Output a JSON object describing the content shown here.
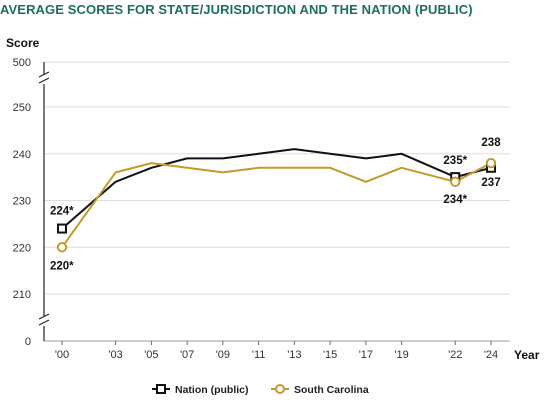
{
  "chart_data": {
    "type": "line",
    "title": "AVERAGE SCORES FOR STATE/JURISDICTION AND THE NATION (PUBLIC)",
    "ylabel": "Score",
    "xlabel": "Year",
    "categories": [
      "'00",
      "'03",
      "'05",
      "'07",
      "'09",
      "'11",
      "'13",
      "'15",
      "'17",
      "'19",
      "'22",
      "'24"
    ],
    "x": [
      2000,
      2003,
      2005,
      2007,
      2009,
      2011,
      2013,
      2015,
      2017,
      2019,
      2022,
      2024
    ],
    "y_ticks_main": [
      210,
      220,
      230,
      240,
      250
    ],
    "y_tick_top": 500,
    "y_tick_bottom": 0,
    "ylim": [
      205,
      255
    ],
    "axis_breaks": true,
    "grid": true,
    "legend_position": "bottom-center",
    "series": [
      {
        "name": "Nation (public)",
        "color": "#111111",
        "marker": "square",
        "values": [
          224,
          234,
          237,
          239,
          239,
          240,
          241,
          240,
          239,
          240,
          235,
          237
        ]
      },
      {
        "name": "South Carolina",
        "color": "#c49a2c",
        "marker": "circle",
        "values": [
          220,
          236,
          238,
          237,
          236,
          237,
          237,
          237,
          234,
          237,
          234,
          238
        ]
      }
    ],
    "annotations": [
      {
        "series": 0,
        "index": 0,
        "text": "224*"
      },
      {
        "series": 1,
        "index": 0,
        "text": "220*"
      },
      {
        "series": 0,
        "index": 10,
        "text": "235*"
      },
      {
        "series": 1,
        "index": 10,
        "text": "234*"
      },
      {
        "series": 0,
        "index": 11,
        "text": "237"
      },
      {
        "series": 1,
        "index": 11,
        "text": "238"
      }
    ]
  }
}
